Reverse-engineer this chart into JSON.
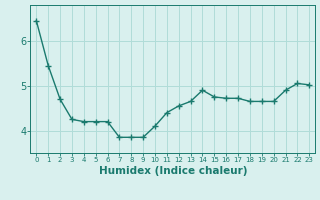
{
  "x": [
    0,
    1,
    2,
    3,
    4,
    5,
    6,
    7,
    8,
    9,
    10,
    11,
    12,
    13,
    14,
    15,
    16,
    17,
    18,
    19,
    20,
    21,
    22,
    23
  ],
  "y": [
    6.45,
    5.45,
    4.7,
    4.25,
    4.2,
    4.2,
    4.2,
    3.85,
    3.85,
    3.85,
    4.1,
    4.4,
    4.55,
    4.65,
    4.9,
    4.75,
    4.72,
    4.72,
    4.65,
    4.65,
    4.65,
    4.9,
    5.05,
    5.02
  ],
  "line_color": "#1a7a6e",
  "marker": "+",
  "marker_size": 4,
  "bg_color": "#d9f0ee",
  "grid_color": "#b0dcd8",
  "tick_color": "#1a7a6e",
  "xlabel": "Humidex (Indice chaleur)",
  "xlabel_fontsize": 7.5,
  "xlabel_color": "#1a7a6e",
  "yticks": [
    4,
    5,
    6
  ],
  "ylim": [
    3.5,
    6.8
  ],
  "xlim": [
    -0.5,
    23.5
  ],
  "xtick_labels": [
    "0",
    "1",
    "2",
    "3",
    "4",
    "5",
    "6",
    "7",
    "8",
    "9",
    "10",
    "11",
    "12",
    "13",
    "14",
    "15",
    "16",
    "17",
    "18",
    "19",
    "20",
    "21",
    "22",
    "23"
  ],
  "line_width": 1.0,
  "axes_color": "#1a7a6e"
}
